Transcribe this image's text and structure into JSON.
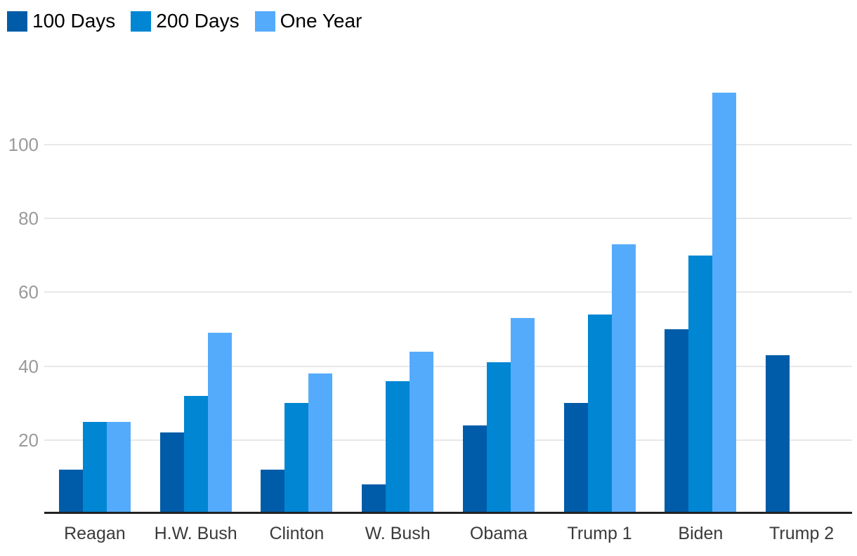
{
  "chart_data": {
    "type": "bar",
    "title": "",
    "xlabel": "",
    "ylabel": "",
    "categories": [
      "Reagan",
      "H.W. Bush",
      "Clinton",
      "W. Bush",
      "Obama",
      "Trump 1",
      "Biden",
      "Trump 2"
    ],
    "series": [
      {
        "name": "100 Days",
        "color": "#005CA8",
        "values": [
          12,
          22,
          12,
          8,
          24,
          30,
          50,
          43
        ]
      },
      {
        "name": "200 Days",
        "color": "#0086D3",
        "values": [
          25,
          32,
          30,
          36,
          41,
          54,
          70,
          null
        ]
      },
      {
        "name": "One Year",
        "color": "#55ABFB",
        "values": [
          25,
          49,
          38,
          44,
          53,
          73,
          114,
          null
        ]
      }
    ],
    "ylim": [
      0,
      120
    ],
    "yticks": [
      20,
      40,
      60,
      80,
      100
    ],
    "grid": true,
    "legend_position": "top-left",
    "colors": {
      "axis_line": "#222222",
      "gridline": "#E8E8E8",
      "tick_label": "#9A9A9A",
      "category_label": "#3A3A3A",
      "legend_text": "#000000",
      "background": "#FFFFFF"
    }
  }
}
